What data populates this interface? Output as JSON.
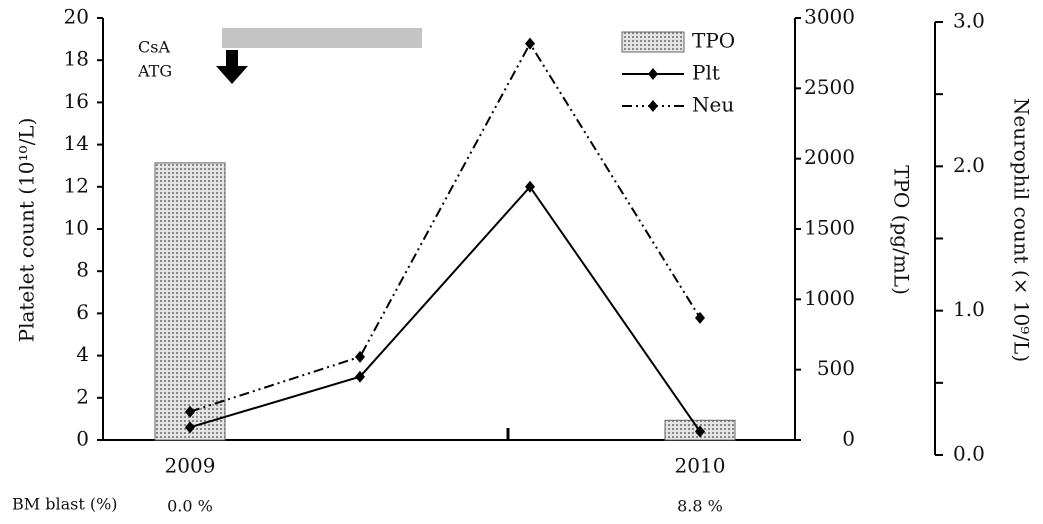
{
  "chart_data": {
    "type": "combo",
    "y_label": "Platelet count (10¹⁰/L)",
    "y2_label": "TPO (pg/mL)",
    "y3_label": "Neurophil count (× 10⁹/L)",
    "categories": [
      "2009",
      null,
      null,
      "2010"
    ],
    "ylim": [
      0,
      20
    ],
    "yticks": [
      0,
      2,
      4,
      6,
      8,
      10,
      12,
      14,
      16,
      18,
      20
    ],
    "y2lim": [
      0,
      3000
    ],
    "y2ticks": [
      0,
      500,
      1000,
      1500,
      2000,
      2500,
      3000
    ],
    "y3lim": [
      0,
      3
    ],
    "y3ticks": [
      {
        "value": 0,
        "label": "0.0"
      },
      {
        "value": 1,
        "label": "1.0"
      },
      {
        "value": 2,
        "label": "2.0"
      },
      {
        "value": 3,
        "label": "3.0"
      }
    ],
    "y3minor": [
      0.5,
      1.5,
      2.5
    ],
    "series": [
      {
        "name": "TPO",
        "type": "bar",
        "axis": "y2",
        "color": "#c8c8c8",
        "values": [
          1970,
          null,
          null,
          140
        ]
      },
      {
        "name": "Plt",
        "type": "line",
        "axis": "y",
        "color": "#000000",
        "values": [
          0.6,
          3.0,
          12.0,
          0.4
        ]
      },
      {
        "name": "Neu",
        "type": "line",
        "axis": "y3",
        "color": "#000000",
        "dash": true,
        "values": [
          0.3,
          0.68,
          2.85,
          0.95
        ]
      }
    ],
    "annotations": [
      "CsA",
      "ATG"
    ],
    "bm_blast": {
      "label": "BM blast (%)",
      "values": [
        "0.0 %",
        null,
        null,
        "8.8 %"
      ]
    }
  }
}
